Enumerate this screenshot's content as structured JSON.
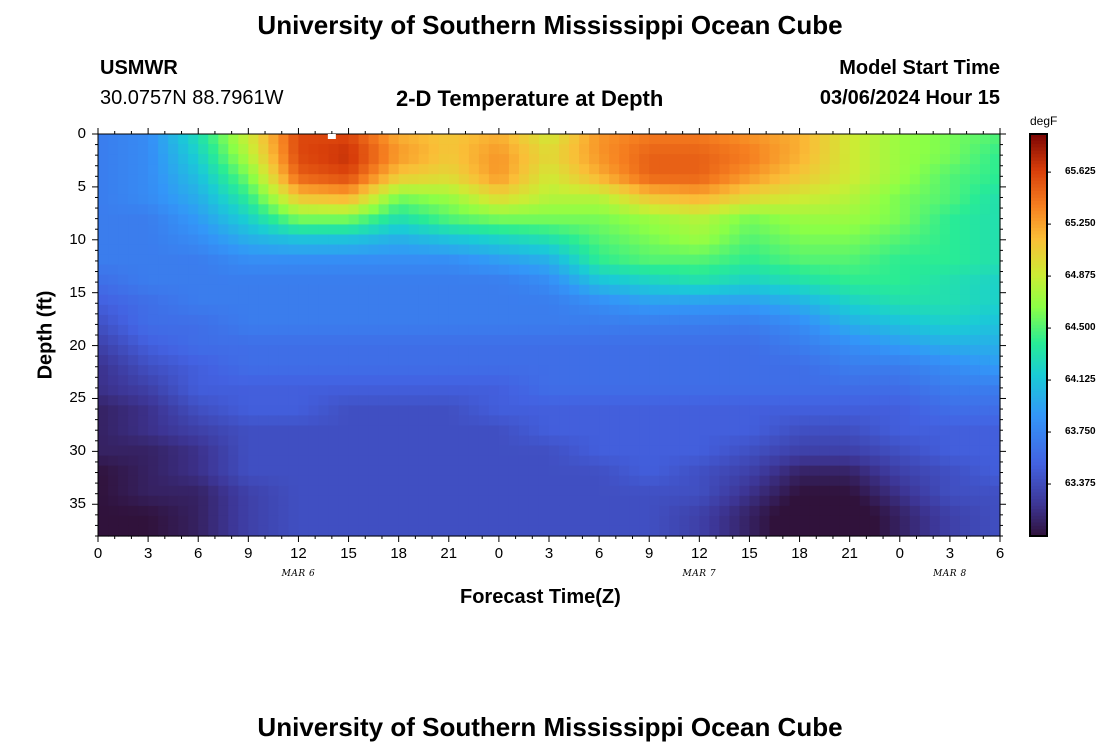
{
  "page": {
    "title_top": "University of Southern Mississippi Ocean Cube",
    "title_bottom": "University of Southern Mississippi Ocean Cube",
    "station": "USMWR",
    "coords": "30.0757N  88.7961W",
    "subtitle": "2-D Temperature at Depth",
    "model_label": "Model Start Time",
    "model_time": "03/06/2024 Hour 15"
  },
  "chart_data": {
    "type": "heatmap",
    "title": "2-D Temperature at Depth",
    "xlabel": "Forecast Time(Z)",
    "ylabel": "Depth (ft)",
    "x_tick_labels": [
      "0",
      "3",
      "6",
      "9",
      "12",
      "15",
      "18",
      "21",
      "0",
      "3",
      "6",
      "9",
      "12",
      "15",
      "18",
      "21",
      "0",
      "3",
      "6"
    ],
    "x_range_hours": [
      0,
      54
    ],
    "date_labels": [
      {
        "label": "MAR 6",
        "hour": 12
      },
      {
        "label": "MAR 7",
        "hour": 36
      },
      {
        "label": "MAR 8",
        "hour": 51
      }
    ],
    "y_ticks": [
      0,
      5,
      10,
      15,
      20,
      25,
      30,
      35
    ],
    "y_range": [
      0,
      38
    ],
    "y_inverted": true,
    "colorbar": {
      "unit": "degF",
      "ticks": [
        "65.625",
        "65.250",
        "64.875",
        "64.500",
        "64.125",
        "63.750",
        "63.375"
      ],
      "range": [
        63.0,
        65.9
      ],
      "colormap": "turbo"
    },
    "depths_ft": [
      0,
      2,
      4,
      6,
      8,
      10,
      12,
      14,
      16,
      18,
      20,
      22,
      24,
      26,
      28,
      30,
      32,
      34,
      36,
      38
    ],
    "hours": [
      0,
      3,
      6,
      9,
      12,
      15,
      18,
      21,
      24,
      27,
      30,
      33,
      36,
      39,
      42,
      45,
      48,
      51,
      54
    ],
    "values_degF": [
      [
        63.7,
        63.8,
        64.3,
        64.9,
        65.6,
        65.6,
        65.2,
        65.1,
        65.2,
        64.9,
        65.3,
        65.4,
        65.4,
        65.3,
        65.2,
        64.9,
        64.7,
        64.6,
        64.5
      ],
      [
        63.7,
        63.8,
        64.2,
        64.8,
        65.6,
        65.7,
        65.3,
        65.1,
        65.3,
        65.0,
        65.3,
        65.5,
        65.5,
        65.4,
        65.2,
        64.9,
        64.7,
        64.6,
        64.4
      ],
      [
        63.7,
        63.8,
        64.1,
        64.6,
        65.5,
        65.6,
        65.1,
        65.0,
        65.3,
        64.9,
        65.2,
        65.5,
        65.5,
        65.3,
        65.1,
        64.9,
        64.7,
        64.5,
        64.4
      ],
      [
        63.7,
        63.8,
        64.0,
        64.4,
        65.1,
        65.2,
        64.6,
        64.7,
        65.0,
        64.8,
        64.8,
        65.1,
        65.2,
        65.0,
        64.9,
        64.8,
        64.6,
        64.5,
        64.3
      ],
      [
        63.7,
        63.7,
        63.9,
        64.2,
        64.6,
        64.6,
        64.3,
        64.5,
        64.6,
        64.6,
        64.6,
        64.7,
        64.8,
        64.6,
        64.7,
        64.7,
        64.6,
        64.4,
        64.3
      ],
      [
        63.7,
        63.7,
        63.8,
        64.0,
        64.1,
        64.1,
        64.0,
        64.1,
        64.2,
        64.3,
        64.5,
        64.6,
        64.7,
        64.5,
        64.6,
        64.6,
        64.5,
        64.4,
        64.3
      ],
      [
        63.7,
        63.7,
        63.7,
        63.8,
        63.8,
        63.8,
        63.8,
        63.8,
        63.9,
        64.0,
        64.4,
        64.5,
        64.5,
        64.4,
        64.5,
        64.5,
        64.4,
        64.4,
        64.3
      ],
      [
        63.6,
        63.7,
        63.7,
        63.7,
        63.7,
        63.7,
        63.7,
        63.7,
        63.7,
        63.8,
        64.1,
        64.2,
        64.3,
        64.2,
        64.3,
        64.4,
        64.4,
        64.3,
        64.2
      ],
      [
        63.5,
        63.6,
        63.7,
        63.7,
        63.7,
        63.7,
        63.7,
        63.7,
        63.7,
        63.7,
        63.8,
        63.9,
        63.9,
        63.9,
        64.0,
        64.2,
        64.3,
        64.3,
        64.2
      ],
      [
        63.4,
        63.6,
        63.6,
        63.7,
        63.7,
        63.7,
        63.7,
        63.7,
        63.7,
        63.7,
        63.7,
        63.7,
        63.7,
        63.7,
        63.8,
        64.0,
        64.1,
        64.2,
        64.1
      ],
      [
        63.3,
        63.5,
        63.6,
        63.6,
        63.6,
        63.6,
        63.6,
        63.6,
        63.6,
        63.6,
        63.6,
        63.6,
        63.6,
        63.6,
        63.7,
        63.8,
        63.9,
        64.0,
        64.0
      ],
      [
        63.2,
        63.4,
        63.5,
        63.6,
        63.6,
        63.6,
        63.6,
        63.6,
        63.6,
        63.6,
        63.6,
        63.6,
        63.6,
        63.6,
        63.6,
        63.7,
        63.7,
        63.8,
        63.9
      ],
      [
        63.2,
        63.3,
        63.5,
        63.5,
        63.5,
        63.5,
        63.5,
        63.5,
        63.5,
        63.6,
        63.6,
        63.6,
        63.6,
        63.6,
        63.6,
        63.6,
        63.6,
        63.7,
        63.7
      ],
      [
        63.1,
        63.2,
        63.4,
        63.5,
        63.5,
        63.4,
        63.4,
        63.4,
        63.5,
        63.5,
        63.5,
        63.5,
        63.5,
        63.5,
        63.5,
        63.5,
        63.5,
        63.6,
        63.6
      ],
      [
        63.1,
        63.2,
        63.3,
        63.4,
        63.4,
        63.4,
        63.4,
        63.4,
        63.4,
        63.5,
        63.5,
        63.5,
        63.5,
        63.5,
        63.4,
        63.4,
        63.5,
        63.5,
        63.5
      ],
      [
        63.1,
        63.1,
        63.2,
        63.4,
        63.4,
        63.4,
        63.4,
        63.4,
        63.4,
        63.4,
        63.5,
        63.5,
        63.5,
        63.4,
        63.3,
        63.3,
        63.4,
        63.5,
        63.5
      ],
      [
        63.0,
        63.1,
        63.2,
        63.4,
        63.4,
        63.4,
        63.4,
        63.4,
        63.4,
        63.4,
        63.4,
        63.5,
        63.4,
        63.3,
        63.1,
        63.1,
        63.3,
        63.4,
        63.5
      ],
      [
        63.0,
        63.1,
        63.1,
        63.3,
        63.4,
        63.4,
        63.4,
        63.4,
        63.4,
        63.4,
        63.4,
        63.4,
        63.4,
        63.2,
        63.0,
        63.0,
        63.2,
        63.4,
        63.4
      ],
      [
        63.0,
        63.0,
        63.1,
        63.3,
        63.4,
        63.4,
        63.4,
        63.4,
        63.4,
        63.4,
        63.4,
        63.4,
        63.3,
        63.1,
        62.9,
        62.9,
        63.1,
        63.3,
        63.4
      ],
      [
        63.0,
        63.0,
        63.1,
        63.3,
        63.4,
        63.4,
        63.4,
        63.4,
        63.4,
        63.4,
        63.4,
        63.4,
        63.3,
        63.1,
        62.9,
        62.9,
        63.1,
        63.3,
        63.4
      ]
    ]
  }
}
